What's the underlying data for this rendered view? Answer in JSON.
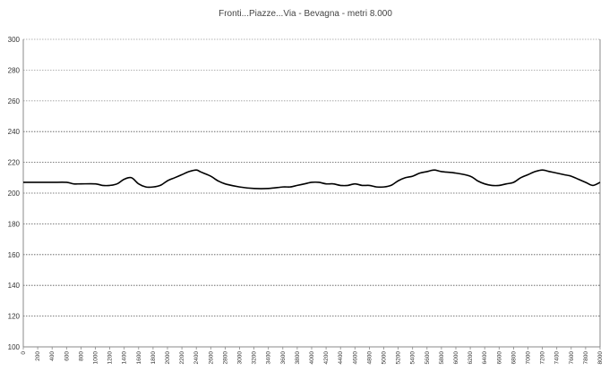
{
  "chart_data": {
    "type": "line",
    "title": "Fronti...Piazze...Via - Bevagna - metri 8.000",
    "xlabel": "",
    "ylabel": "",
    "xlim": [
      0,
      8000
    ],
    "ylim": [
      100,
      300
    ],
    "yticks": [
      "100",
      "120",
      "140",
      "160",
      "180",
      "200",
      "220",
      "240",
      "260",
      "280",
      "300"
    ],
    "xticks": [
      "0",
      "200",
      "400",
      "600",
      "800",
      "1000",
      "1200",
      "1400",
      "1600",
      "1800",
      "2000",
      "2200",
      "2400",
      "2600",
      "2800",
      "3000",
      "3200",
      "3400",
      "3600",
      "3800",
      "4000",
      "4200",
      "4400",
      "4600",
      "4800",
      "5000",
      "5200",
      "5400",
      "5600",
      "5800",
      "6000",
      "6200",
      "6400",
      "6600",
      "6800",
      "7000",
      "7200",
      "7400",
      "7600",
      "7800",
      "8000"
    ],
    "grid": true,
    "legend": "none",
    "line_color": "#000000",
    "series": [
      {
        "x": [
          0,
          200,
          400,
          600,
          700,
          800,
          1000,
          1100,
          1200,
          1300,
          1400,
          1500,
          1600,
          1700,
          1800,
          1900,
          2000,
          2100,
          2200,
          2300,
          2400,
          2450,
          2500,
          2600,
          2700,
          2800,
          3000,
          3200,
          3400,
          3600,
          3700,
          3800,
          3900,
          4000,
          4100,
          4200,
          4300,
          4400,
          4500,
          4600,
          4700,
          4800,
          4900,
          5000,
          5100,
          5200,
          5300,
          5400,
          5500,
          5600,
          5700,
          5800,
          6000,
          6200,
          6300,
          6400,
          6500,
          6600,
          6700,
          6800,
          6900,
          7000,
          7100,
          7200,
          7300,
          7400,
          7500,
          7600,
          7700,
          7800,
          7900,
          8000
        ],
        "y": [
          207,
          207,
          207,
          207,
          206,
          206,
          206,
          205,
          205,
          206,
          209,
          210,
          206,
          204,
          204,
          205,
          208,
          210,
          212,
          214,
          215,
          214,
          213,
          211,
          208,
          206,
          204,
          203,
          203,
          204,
          204,
          205,
          206,
          207,
          207,
          206,
          206,
          205,
          205,
          206,
          205,
          205,
          204,
          204,
          205,
          208,
          210,
          211,
          213,
          214,
          215,
          214,
          213,
          211,
          208,
          206,
          205,
          205,
          206,
          207,
          210,
          212,
          214,
          215,
          214,
          213,
          212,
          211,
          209,
          207,
          205,
          207
        ]
      }
    ]
  }
}
